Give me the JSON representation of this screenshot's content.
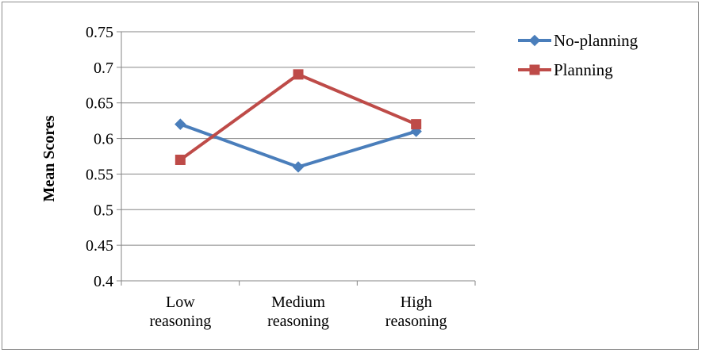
{
  "chart_data": {
    "type": "line",
    "title": "",
    "xlabel": "",
    "ylabel": "Mean Scores",
    "ylim": [
      0.4,
      0.75
    ],
    "yticks": [
      "0.4",
      "0.45",
      "0.5",
      "0.55",
      "0.6",
      "0.65",
      "0.7",
      "0.75"
    ],
    "categories": [
      [
        "Low",
        "reasoning"
      ],
      [
        "Medium",
        "reasoning"
      ],
      [
        "High",
        "reasoning"
      ]
    ],
    "series": [
      {
        "name": "No-planning",
        "values": [
          0.62,
          0.56,
          0.61
        ],
        "color": "#4a7ebb",
        "marker": "diamond"
      },
      {
        "name": "Planning",
        "values": [
          0.57,
          0.69,
          0.62
        ],
        "color": "#be4b48",
        "marker": "square"
      }
    ],
    "grid": true,
    "legend": "right"
  }
}
